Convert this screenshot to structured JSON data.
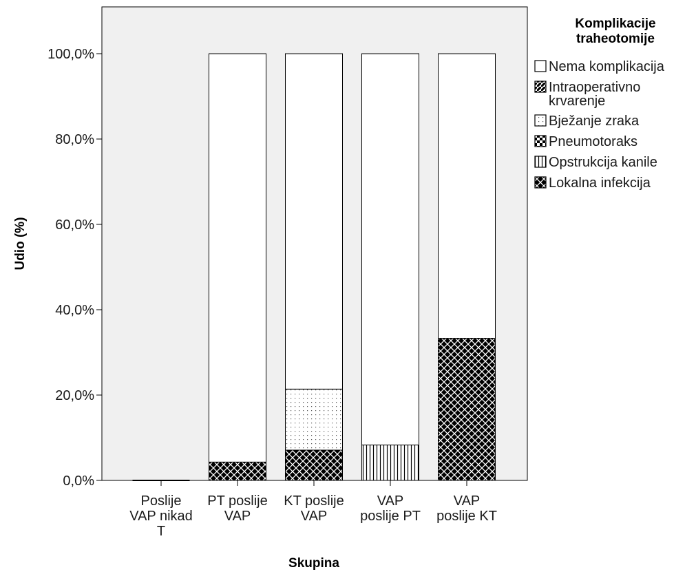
{
  "chart_data": {
    "type": "bar",
    "stacked": true,
    "xlabel": "Skupina",
    "ylabel": "Udio (%)",
    "ylim": [
      0,
      100
    ],
    "y_ticks": [
      "0,0%",
      "20,0%",
      "40,0%",
      "60,0%",
      "80,0%",
      "100,0%"
    ],
    "grid": false,
    "legend_position": "right",
    "legend_title": [
      "Komplikacije",
      "traheotomije"
    ],
    "categories": [
      [
        "Poslije",
        "VAP nikad",
        "T"
      ],
      [
        "PT poslije",
        "VAP"
      ],
      [
        "KT poslije",
        "VAP"
      ],
      [
        "VAP",
        "poslije PT"
      ],
      [
        "VAP",
        "poslije KT"
      ]
    ],
    "series": [
      {
        "name": "Lokalna infekcija",
        "label_lines": [
          "Lokalna infekcija"
        ],
        "pattern": "crosshatch",
        "values": [
          0,
          4.3,
          7.1,
          0,
          33.3
        ]
      },
      {
        "name": "Opstrukcija kanile",
        "label_lines": [
          "Opstrukcija kanile"
        ],
        "pattern": "vertical",
        "values": [
          0,
          0,
          0,
          8.3,
          0
        ]
      },
      {
        "name": "Pneumotoraks",
        "label_lines": [
          "Pneumotoraks"
        ],
        "pattern": "checker",
        "values": [
          0,
          0,
          0,
          0,
          0
        ]
      },
      {
        "name": "Bježanje zraka",
        "label_lines": [
          "Bježanje zraka"
        ],
        "pattern": "dots",
        "values": [
          0,
          0,
          14.3,
          0,
          0
        ]
      },
      {
        "name": "Intraoperativno krvarenje",
        "label_lines": [
          "Intraoperativno",
          "krvarenje"
        ],
        "pattern": "diagonal",
        "values": [
          0,
          0,
          0,
          0,
          0
        ]
      },
      {
        "name": "Nema komplikacija",
        "label_lines": [
          "Nema komplikacija"
        ],
        "pattern": "none",
        "values": [
          0,
          95.7,
          78.6,
          91.7,
          66.7
        ]
      }
    ],
    "legend_order": [
      "Nema komplikacija",
      "Intraoperativno krvarenje",
      "Bježanje zraka",
      "Pneumotoraks",
      "Opstrukcija kanile",
      "Lokalna infekcija"
    ],
    "colors": {
      "plot_background": "#f0f0f0",
      "bar_fill": "#ffffff",
      "stroke": "#000000"
    }
  }
}
